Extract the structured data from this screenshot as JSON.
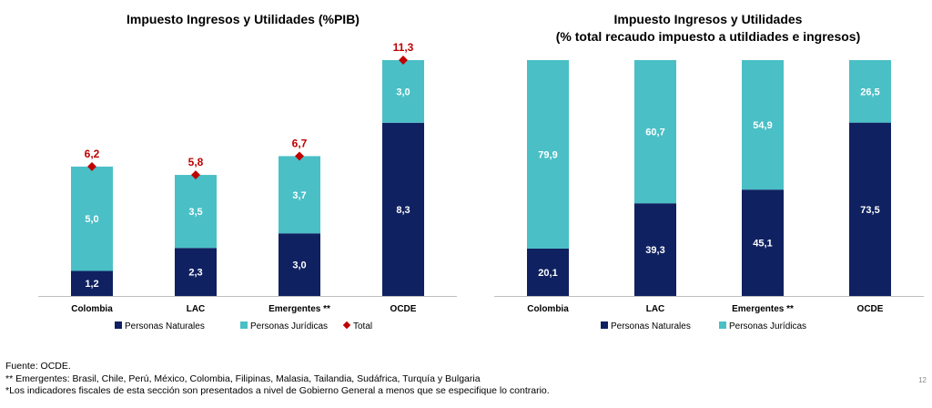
{
  "colors": {
    "naturales": "#0f2160",
    "juridicas": "#4abfc6",
    "total": "#c00000",
    "axis": "#bfbfbf"
  },
  "chart_data": [
    {
      "type": "bar",
      "stacked": true,
      "title": "Impuesto Ingresos y Utilidades (%PIB)",
      "subtitle": "",
      "categories": [
        "Colombia",
        "LAC",
        "Emergentes **",
        "OCDE"
      ],
      "series": [
        {
          "name": "Personas Naturales",
          "values": [
            1.2,
            2.3,
            3.0,
            8.3
          ],
          "labels": [
            "1,2",
            "2,3",
            "3,0",
            "8,3"
          ]
        },
        {
          "name": "Personas Jurídicas",
          "values": [
            5.0,
            3.5,
            3.7,
            3.0
          ],
          "labels": [
            "5,0",
            "3,5",
            "3,7",
            "3,0"
          ]
        },
        {
          "name": "Total",
          "values": [
            6.2,
            5.8,
            6.7,
            11.3
          ],
          "labels": [
            "6,2",
            "5,8",
            "6,7",
            "11,3"
          ],
          "marker": "diamond"
        }
      ],
      "ylim": [
        0,
        11.3
      ],
      "legend": "bottom",
      "grid": false
    },
    {
      "type": "bar",
      "stacked": true,
      "title": "Impuesto Ingresos y Utilidades",
      "subtitle": "(% total recaudo impuesto a utildiades e ingresos)",
      "categories": [
        "Colombia",
        "LAC",
        "Emergentes **",
        "OCDE"
      ],
      "series": [
        {
          "name": "Personas Naturales",
          "values": [
            20.1,
            39.3,
            45.1,
            73.5
          ],
          "labels": [
            "20,1",
            "39,3",
            "45,1",
            "73,5"
          ]
        },
        {
          "name": "Personas Jurídicas",
          "values": [
            79.9,
            60.7,
            54.9,
            26.5
          ],
          "labels": [
            "79,9",
            "60,7",
            "54,9",
            "26,5"
          ]
        }
      ],
      "ylim": [
        0,
        100
      ],
      "legend": "bottom",
      "grid": false
    }
  ],
  "footnotes": {
    "source": "Fuente: OCDE.",
    "emergentes": "** Emergentes: Brasil, Chile, Perú, México, Colombia, Filipinas, Malasia, Tailandia, Sudáfrica, Turquía y Bulgaria",
    "indicadores": "*Los indicadores fiscales de esta sección son presentados a nivel de Gobierno General a menos que se especifique lo contrario."
  },
  "page_number": "12"
}
